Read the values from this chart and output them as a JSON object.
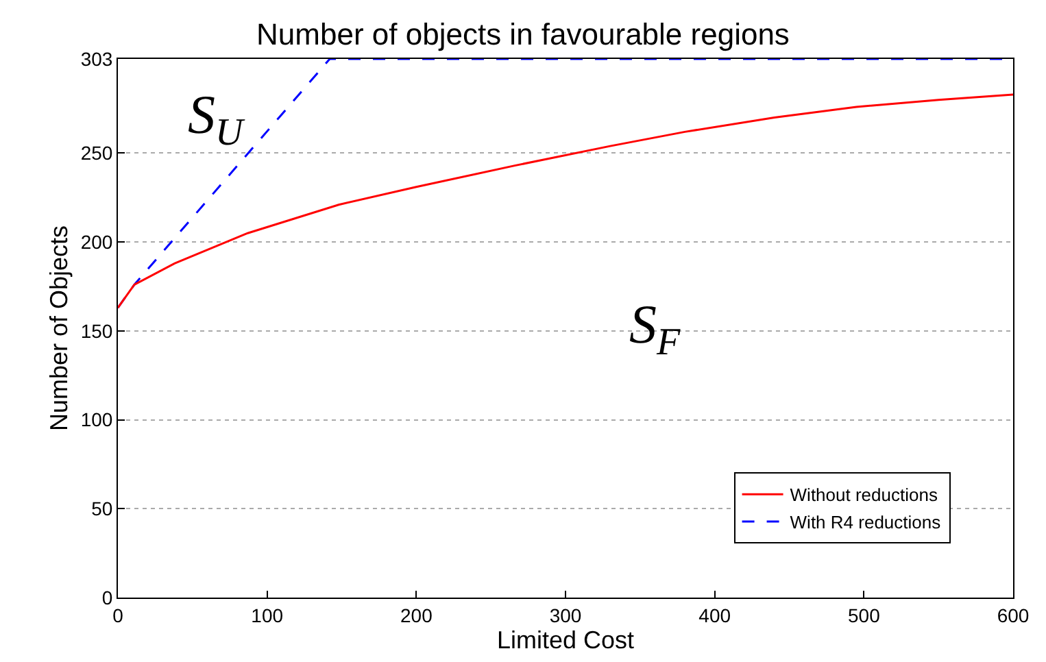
{
  "chart_data": {
    "type": "line",
    "title": "Number of objects in favourable regions",
    "xlabel": "Limited Cost",
    "ylabel": "Number of Objects",
    "series": [
      {
        "name": "Without reductions",
        "color": "#ff0000",
        "line_style": "solid",
        "x": [
          0,
          11,
          38,
          87,
          148,
          200,
          266,
          330,
          380,
          440,
          495,
          550,
          600
        ],
        "values": [
          163,
          176,
          188,
          205,
          221,
          231,
          243,
          254,
          262,
          270,
          276,
          280,
          283
        ]
      },
      {
        "name": "With R4 reductions",
        "color": "#0000ff",
        "line_style": "dashed",
        "x": [
          0,
          11,
          142,
          600
        ],
        "values": [
          163,
          176,
          303,
          303
        ]
      }
    ],
    "xlim": [
      0,
      600
    ],
    "xticks": [
      0,
      100,
      200,
      300,
      400,
      500,
      600
    ],
    "ylim": [
      0,
      303
    ],
    "yticks": [
      0,
      50,
      100,
      150,
      200,
      250,
      303
    ],
    "grid": "y",
    "legend": "bottom right",
    "annotations": [
      "S$_{U}$",
      "S$_{F}$"
    ]
  }
}
